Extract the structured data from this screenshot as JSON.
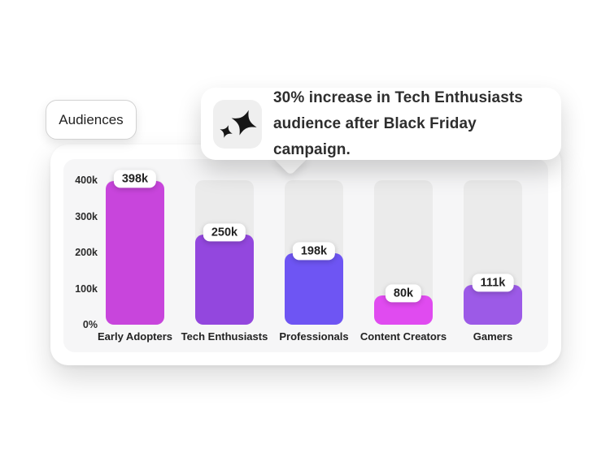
{
  "audiences": {
    "label": "Audiences"
  },
  "tooltip": {
    "icon": "sparkle-icon",
    "line1": "30% increase in Tech Enthusiasts",
    "line2": "audience after Black Friday campaign."
  },
  "chart_data": {
    "type": "bar",
    "title": "Audiences",
    "categories": [
      "Early Adopters",
      "Tech Enthusiasts",
      "Professionals",
      "Content Creators",
      "Gamers"
    ],
    "values": [
      398000,
      250000,
      198000,
      80000,
      111000
    ],
    "value_labels": [
      "398k",
      "250k",
      "198k",
      "80k",
      "111k"
    ],
    "bar_colors": [
      "#c845dc",
      "#9347de",
      "#6e55f3",
      "#e04bf0",
      "#9c5ae7"
    ],
    "y_ticks": [
      "400k",
      "300k",
      "200k",
      "100k",
      "0%"
    ],
    "y_tick_values": [
      400000,
      300000,
      200000,
      100000,
      0
    ],
    "ylim": [
      0,
      400000
    ],
    "xlabel": "",
    "ylabel": "",
    "legend": "none",
    "grid": "off",
    "track_color": "#ebebeb",
    "panel_color": "#f6f6f7"
  }
}
